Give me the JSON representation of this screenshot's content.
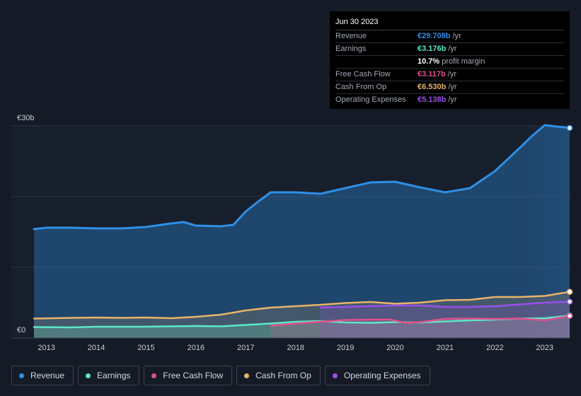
{
  "tooltip": {
    "date": "Jun 30 2023",
    "rows": [
      {
        "label": "Revenue",
        "value": "€29.708b",
        "unit": "/yr",
        "color": "#2e8fe6"
      },
      {
        "label": "Earnings",
        "value": "€3.176b",
        "unit": "/yr",
        "color": "#5ce8c8"
      },
      {
        "label": "",
        "value": "10.7%",
        "unit": "profit margin",
        "color": "#ffffff"
      },
      {
        "label": "Free Cash Flow",
        "value": "€3.117b",
        "unit": "/yr",
        "color": "#e0508c"
      },
      {
        "label": "Cash From Op",
        "value": "€6.530b",
        "unit": "/yr",
        "color": "#e8b46a"
      },
      {
        "label": "Operating Expenses",
        "value": "€5.138b",
        "unit": "/yr",
        "color": "#9b4ee8"
      }
    ]
  },
  "legend": [
    {
      "label": "Revenue",
      "color": "#2e8fe6"
    },
    {
      "label": "Earnings",
      "color": "#5ce8c8"
    },
    {
      "label": "Free Cash Flow",
      "color": "#e0508c"
    },
    {
      "label": "Cash From Op",
      "color": "#e8b46a"
    },
    {
      "label": "Operating Expenses",
      "color": "#9b4ee8"
    }
  ],
  "chart_data": {
    "type": "area",
    "y_top_label": "€30b",
    "y_bottom_label": "€0",
    "ylim": [
      0,
      30
    ],
    "xlim": [
      2012.75,
      2023.5
    ],
    "x_ticks": [
      2013,
      2014,
      2015,
      2016,
      2017,
      2018,
      2019,
      2020,
      2021,
      2022,
      2023
    ],
    "x_tick_labels": [
      "2013",
      "2014",
      "2015",
      "2016",
      "2017",
      "2018",
      "2019",
      "2020",
      "2021",
      "2022",
      "2023"
    ],
    "series": [
      {
        "name": "Revenue",
        "color": "#2e8fe6",
        "x": [
          2012.75,
          2013.0,
          2013.5,
          2014.0,
          2014.5,
          2015.0,
          2015.5,
          2015.75,
          2016.0,
          2016.5,
          2016.75,
          2017.0,
          2017.25,
          2017.5,
          2018.0,
          2018.5,
          2019.0,
          2019.5,
          2020.0,
          2020.5,
          2021.0,
          2021.5,
          2021.75,
          2022.0,
          2022.5,
          2022.75,
          2023.0,
          2023.5
        ],
        "values": [
          15.4,
          15.6,
          15.6,
          15.5,
          15.5,
          15.7,
          16.2,
          16.4,
          15.9,
          15.8,
          16.0,
          17.9,
          19.3,
          20.6,
          20.6,
          20.4,
          21.2,
          22.0,
          22.1,
          21.3,
          20.6,
          21.2,
          22.4,
          23.6,
          26.9,
          28.6,
          30.1,
          29.7
        ]
      },
      {
        "name": "Earnings",
        "color": "#5ce8c8",
        "x": [
          2012.75,
          2013.5,
          2014.0,
          2015.0,
          2016.0,
          2016.5,
          2017.0,
          2017.5,
          2018.0,
          2018.5,
          2019.0,
          2019.5,
          2020.0,
          2020.5,
          2021.0,
          2021.5,
          2022.0,
          2022.5,
          2023.0,
          2023.5
        ],
        "values": [
          1.55,
          1.5,
          1.6,
          1.6,
          1.7,
          1.65,
          1.85,
          2.05,
          2.3,
          2.4,
          2.2,
          2.15,
          2.25,
          2.2,
          2.35,
          2.5,
          2.6,
          2.75,
          2.8,
          3.18
        ]
      },
      {
        "name": "Free Cash Flow",
        "color": "#e0508c",
        "x": [
          2017.5,
          2018.0,
          2018.5,
          2019.0,
          2019.5,
          2019.9,
          2020.2,
          2020.5,
          2021.0,
          2021.5,
          2022.0,
          2022.5,
          2023.0,
          2023.5
        ],
        "values": [
          1.75,
          2.05,
          2.3,
          2.55,
          2.6,
          2.6,
          2.15,
          2.25,
          2.7,
          2.75,
          2.7,
          2.75,
          2.5,
          3.12
        ]
      },
      {
        "name": "Cash From Op",
        "color": "#e8b46a",
        "x": [
          2012.75,
          2013.5,
          2014.0,
          2014.5,
          2015.0,
          2015.5,
          2016.0,
          2016.5,
          2017.0,
          2017.5,
          2018.0,
          2018.5,
          2019.0,
          2019.5,
          2020.0,
          2020.5,
          2021.0,
          2021.5,
          2022.0,
          2022.5,
          2023.0,
          2023.5
        ],
        "values": [
          2.75,
          2.85,
          2.9,
          2.85,
          2.9,
          2.8,
          3.0,
          3.3,
          3.9,
          4.3,
          4.5,
          4.7,
          4.95,
          5.1,
          4.85,
          5.0,
          5.35,
          5.4,
          5.8,
          5.8,
          5.95,
          6.53
        ]
      },
      {
        "name": "Operating Expenses",
        "color": "#9b4ee8",
        "x": [
          2018.5,
          2019.0,
          2019.5,
          2020.0,
          2020.5,
          2021.0,
          2021.5,
          2022.0,
          2022.5,
          2023.0,
          2023.5
        ],
        "values": [
          4.3,
          4.4,
          4.5,
          4.6,
          4.6,
          4.4,
          4.4,
          4.5,
          4.75,
          5.0,
          5.14
        ]
      }
    ]
  }
}
